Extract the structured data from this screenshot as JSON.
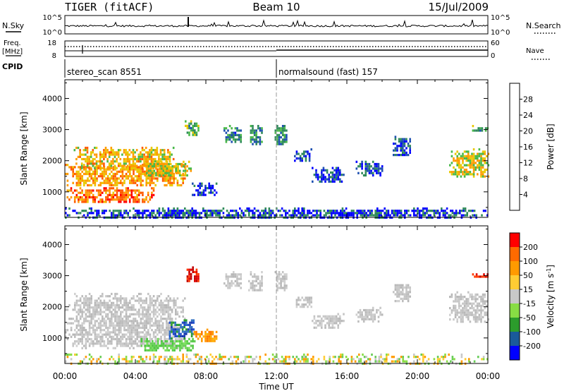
{
  "header": {
    "station": "TIGER (fitACF)",
    "beam": "Beam 10",
    "date": "15/Jul/2009"
  },
  "strips": {
    "nsky_label": "N.Sky",
    "nsearch_label": "N.Search",
    "freq_label_1": "Freq.",
    "freq_label_2": "[MHz]",
    "nave_label": "Nave",
    "cpid_label": "CPID",
    "noise_ticks_left": [
      "10^5",
      "10^0"
    ],
    "noise_ticks_right": [
      "10^5",
      "10^0"
    ],
    "freq_ticks": [
      "18",
      "8"
    ],
    "nave_ticks": [
      "60",
      "0"
    ],
    "cpid_segments": [
      {
        "label": "stereo_scan 8551",
        "start_hour": 0
      },
      {
        "label": "normalsound (fast) 157",
        "start_hour": 12
      }
    ]
  },
  "chart_data": [
    {
      "type": "heatmap",
      "panel": "power",
      "ylabel": "Slant Range [km]",
      "yticks": [
        1000,
        2000,
        3000,
        4000
      ],
      "ylim": [
        180,
        4600
      ],
      "xlim": [
        0,
        24
      ],
      "colorbar": {
        "label": "Power [dB]",
        "ticks": [
          4,
          8,
          12,
          16,
          20,
          24,
          28
        ],
        "range": [
          0,
          32
        ],
        "colors": [
          "#0000ff",
          "#1d4fb0",
          "#2f8a5a",
          "#48b848",
          "#e8c800",
          "#ff9a00",
          "#ff5a00",
          "#ff0000"
        ]
      },
      "regions": [
        {
          "t0": 0.0,
          "t1": 6.8,
          "r0": 1200,
          "r1": 1900,
          "level": 0.68
        },
        {
          "t0": 0.1,
          "t1": 5.0,
          "r0": 650,
          "r1": 1150,
          "level": 0.78
        },
        {
          "t0": 0.5,
          "t1": 6.2,
          "r0": 1750,
          "r1": 2450,
          "level": 0.6
        },
        {
          "t0": 4.5,
          "t1": 7.2,
          "r0": 1500,
          "r1": 2000,
          "level": 0.55
        },
        {
          "t0": 6.8,
          "t1": 7.6,
          "r0": 2800,
          "r1": 3300,
          "level": 0.4
        },
        {
          "t0": 7.2,
          "t1": 8.6,
          "r0": 900,
          "r1": 1300,
          "level": 0.12
        },
        {
          "t0": 9.0,
          "t1": 10.0,
          "r0": 2600,
          "r1": 3150,
          "level": 0.28
        },
        {
          "t0": 10.4,
          "t1": 11.2,
          "r0": 2500,
          "r1": 3150,
          "level": 0.3
        },
        {
          "t0": 11.9,
          "t1": 12.6,
          "r0": 2500,
          "r1": 3150,
          "level": 0.32
        },
        {
          "t0": 13.0,
          "t1": 14.0,
          "r0": 2000,
          "r1": 2400,
          "level": 0.2
        },
        {
          "t0": 14.0,
          "t1": 15.8,
          "r0": 1300,
          "r1": 1800,
          "level": 0.15
        },
        {
          "t0": 16.5,
          "t1": 18.0,
          "r0": 1550,
          "r1": 2000,
          "level": 0.2
        },
        {
          "t0": 18.6,
          "t1": 19.6,
          "r0": 2150,
          "r1": 2800,
          "level": 0.2
        },
        {
          "t0": 21.8,
          "t1": 24.0,
          "r0": 1500,
          "r1": 2400,
          "level": 0.55
        },
        {
          "t0": 23.0,
          "t1": 24.0,
          "r0": 2950,
          "r1": 3150,
          "level": 0.35
        },
        {
          "t0": 0.0,
          "t1": 24.0,
          "r0": 180,
          "r1": 500,
          "level": 0.16
        }
      ]
    },
    {
      "type": "heatmap",
      "panel": "velocity",
      "ylabel": "Slant Range [km]",
      "yticks": [
        1000,
        2000,
        3000,
        4000
      ],
      "ylim": [
        180,
        4600
      ],
      "xlim": [
        0,
        24
      ],
      "xticks": [
        "00:00",
        "04:00",
        "08:00",
        "12:00",
        "16:00",
        "20:00",
        "00:00"
      ],
      "xlabel": "Time UT",
      "colorbar": {
        "label": "Velocity [m s",
        "label_sup": "-1",
        "label_close": "]",
        "ticks": [
          -200,
          -100,
          -50,
          -15,
          15,
          50,
          100,
          200
        ],
        "colors": [
          "#ff0000",
          "#ff6a00",
          "#ff9a00",
          "#ffcc33",
          "#c8c8c8",
          "#88dd44",
          "#2c9c2c",
          "#1a5a9a",
          "#0000ff"
        ]
      },
      "regions": [
        {
          "t0": 0.0,
          "t1": 6.8,
          "r0": 650,
          "r1": 2450,
          "kind": "gray"
        },
        {
          "t0": 4.3,
          "t1": 7.4,
          "r0": 600,
          "r1": 1000,
          "kind": "green"
        },
        {
          "t0": 5.8,
          "t1": 7.3,
          "r0": 1000,
          "r1": 1600,
          "kind": "blue"
        },
        {
          "t0": 6.8,
          "t1": 7.6,
          "r0": 2800,
          "r1": 3300,
          "kind": "red"
        },
        {
          "t0": 7.2,
          "t1": 8.6,
          "r0": 900,
          "r1": 1300,
          "kind": "orange"
        },
        {
          "t0": 9.0,
          "t1": 10.0,
          "r0": 2600,
          "r1": 3150,
          "kind": "gray"
        },
        {
          "t0": 10.4,
          "t1": 11.2,
          "r0": 2500,
          "r1": 3150,
          "kind": "gray"
        },
        {
          "t0": 11.9,
          "t1": 12.6,
          "r0": 2500,
          "r1": 3150,
          "kind": "gray"
        },
        {
          "t0": 13.0,
          "t1": 14.0,
          "r0": 2000,
          "r1": 2400,
          "kind": "gray"
        },
        {
          "t0": 14.0,
          "t1": 15.8,
          "r0": 1300,
          "r1": 1800,
          "kind": "gray"
        },
        {
          "t0": 16.5,
          "t1": 18.0,
          "r0": 1550,
          "r1": 2000,
          "kind": "gray"
        },
        {
          "t0": 18.6,
          "t1": 19.6,
          "r0": 2150,
          "r1": 2800,
          "kind": "gray"
        },
        {
          "t0": 21.8,
          "t1": 24.0,
          "r0": 1500,
          "r1": 2500,
          "kind": "gray"
        },
        {
          "t0": 23.0,
          "t1": 24.0,
          "r0": 2950,
          "r1": 3150,
          "kind": "red"
        },
        {
          "t0": 0.0,
          "t1": 24.0,
          "r0": 180,
          "r1": 500,
          "kind": "lowgreen"
        }
      ]
    }
  ]
}
